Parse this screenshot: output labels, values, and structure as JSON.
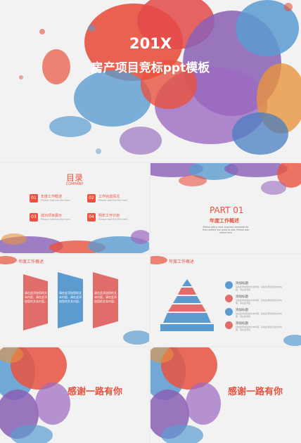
{
  "cover": {
    "year": "201X",
    "subtitle": "房产项目竞标ppt模板"
  },
  "toc": {
    "title": "目录",
    "subtitle": "COMPANY",
    "items": [
      {
        "num": "01",
        "label": "年度工作概述",
        "desc": "Please add the file here"
      },
      {
        "num": "02",
        "label": "工作完成情况",
        "desc": "Please add the file here"
      },
      {
        "num": "03",
        "label": "成功项目展示",
        "desc": "Please add the file here"
      },
      {
        "num": "04",
        "label": "明年工作计划",
        "desc": "Please add the file here"
      }
    ]
  },
  "part": {
    "number": "PART 01",
    "title": "年度工作概述",
    "text": "Please add a clear business template for this content you want to add. Please add detail here"
  },
  "arrows_slide": {
    "title": "年度工作概述",
    "boxes": [
      {
        "text": "请在此添加您的文本内容，请在此添加您的文本内容。",
        "color": "#e06d6a"
      },
      {
        "text": "请在此添加您的文本内容，请在此添加您的文本内容。",
        "color": "#5b9bd0"
      },
      {
        "text": "请在此添加您的文本内容，请在此添加您的文本内容。",
        "color": "#e06d6a"
      }
    ]
  },
  "pyramid_slide": {
    "title": "年度工作概述",
    "items": [
      {
        "title": "添加标题",
        "desc": "请在此添加您的文本内容，请在此添加您的文本内容，请在此添加",
        "color": "#5b9bd0"
      },
      {
        "title": "添加标题",
        "desc": "请在此添加您的文本内容，请在此添加您的文本内容，请在此添加",
        "color": "#e06d6a"
      },
      {
        "title": "添加标题",
        "desc": "请在此添加您的文本内容，请在此添加您的文本内容，请在此添加",
        "color": "#5b9bd0"
      },
      {
        "title": "添加标题",
        "desc": "请在此添加您的文本内容，请在此添加您的文本内容，请在此添加",
        "color": "#e06d6a"
      }
    ]
  },
  "closing": {
    "text_left": "感谢一路有你",
    "text_right": "感谢一路有你"
  },
  "colors": {
    "accent": "#e8523f",
    "blue": "#5b9bd0",
    "purple": "#8a5fb5",
    "orange": "#e8953f",
    "red": "#e8523f"
  }
}
